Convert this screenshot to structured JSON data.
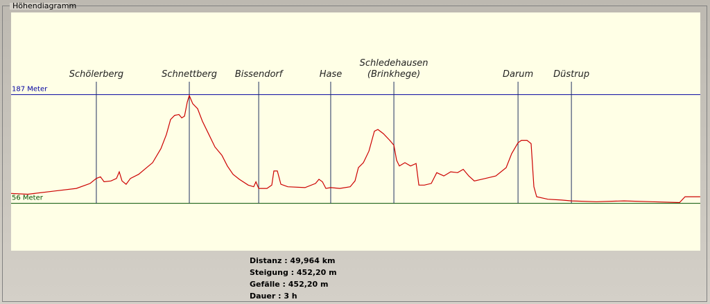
{
  "panel_title": "Höhendiagramm",
  "chart_data": {
    "type": "line",
    "xlim": [
      0,
      49.964
    ],
    "ylim": [
      -1,
      286
    ],
    "reference_lines": [
      {
        "value": 187,
        "label": "187 Meter",
        "color": "#0000a0"
      },
      {
        "value": 56,
        "label": "56 Meter",
        "color": "#005000"
      }
    ],
    "landmarks": [
      {
        "label": [
          "Schölerberg"
        ],
        "x": 6.18
      },
      {
        "label": [
          "Schnettberg"
        ],
        "x": 12.92
      },
      {
        "label": [
          "Bissendorf"
        ],
        "x": 17.95
      },
      {
        "label": [
          "Hase"
        ],
        "x": 23.17
      },
      {
        "label": [
          "Schledehausen",
          "(Brinkhege)"
        ],
        "x": 27.75
      },
      {
        "label": [
          "Darum"
        ],
        "x": 36.75
      },
      {
        "label": [
          "Düstrup"
        ],
        "x": 40.62
      }
    ],
    "series": [
      {
        "color": "#cc0000",
        "x": [
          0,
          1.21,
          3.22,
          4.73,
          5.73,
          6.18,
          6.48,
          6.74,
          7.24,
          7.64,
          7.84,
          8.04,
          8.34,
          8.65,
          9.25,
          9.75,
          10.26,
          10.86,
          11.26,
          11.56,
          11.86,
          12.17,
          12.37,
          12.57,
          12.77,
          12.92,
          13.17,
          13.52,
          13.87,
          14.28,
          14.78,
          15.28,
          15.68,
          16.09,
          16.54,
          17.19,
          17.59,
          17.75,
          17.95,
          18.55,
          18.9,
          19.05,
          19.3,
          19.56,
          20.06,
          21.31,
          22.07,
          22.32,
          22.57,
          22.82,
          23.17,
          23.83,
          24.58,
          24.93,
          25.18,
          25.54,
          25.94,
          26.34,
          26.59,
          26.99,
          27.45,
          27.75,
          27.95,
          28.15,
          28.55,
          28.96,
          29.36,
          29.56,
          29.96,
          30.46,
          30.86,
          31.37,
          31.87,
          32.37,
          32.78,
          33.18,
          33.58,
          34.38,
          35.14,
          35.89,
          36.29,
          36.75,
          37.0,
          37.4,
          37.7,
          37.9,
          38.1,
          38.91,
          39.91,
          40.62,
          42.43,
          44.44,
          46.45,
          48.46,
          48.86,
          49.96
        ],
        "values": [
          68,
          67,
          71,
          74,
          80,
          86,
          88,
          82,
          83,
          86,
          94,
          83,
          79,
          86,
          91,
          98,
          105,
          122,
          139,
          157,
          162,
          163,
          159,
          161,
          178,
          186,
          176,
          170,
          155,
          141,
          124,
          114,
          101,
          91,
          85,
          78,
          76,
          82,
          74,
          74,
          78,
          95,
          95,
          79,
          76,
          75,
          80,
          85,
          82,
          74,
          75,
          74,
          76,
          83,
          99,
          105,
          119,
          143,
          145,
          140,
          132,
          126,
          108,
          101,
          105,
          101,
          104,
          78,
          78,
          80,
          93,
          89,
          94,
          93,
          97,
          89,
          83,
          86,
          89,
          99,
          116,
          129,
          132,
          132,
          128,
          76,
          64,
          61,
          60,
          59,
          58,
          59,
          58,
          57,
          64,
          64
        ]
      }
    ]
  },
  "stats": [
    "Distanz : 49,964 km",
    "Steigung : 452,20 m",
    "Gefälle : 452,20 m",
    "Dauer : 3 h"
  ]
}
